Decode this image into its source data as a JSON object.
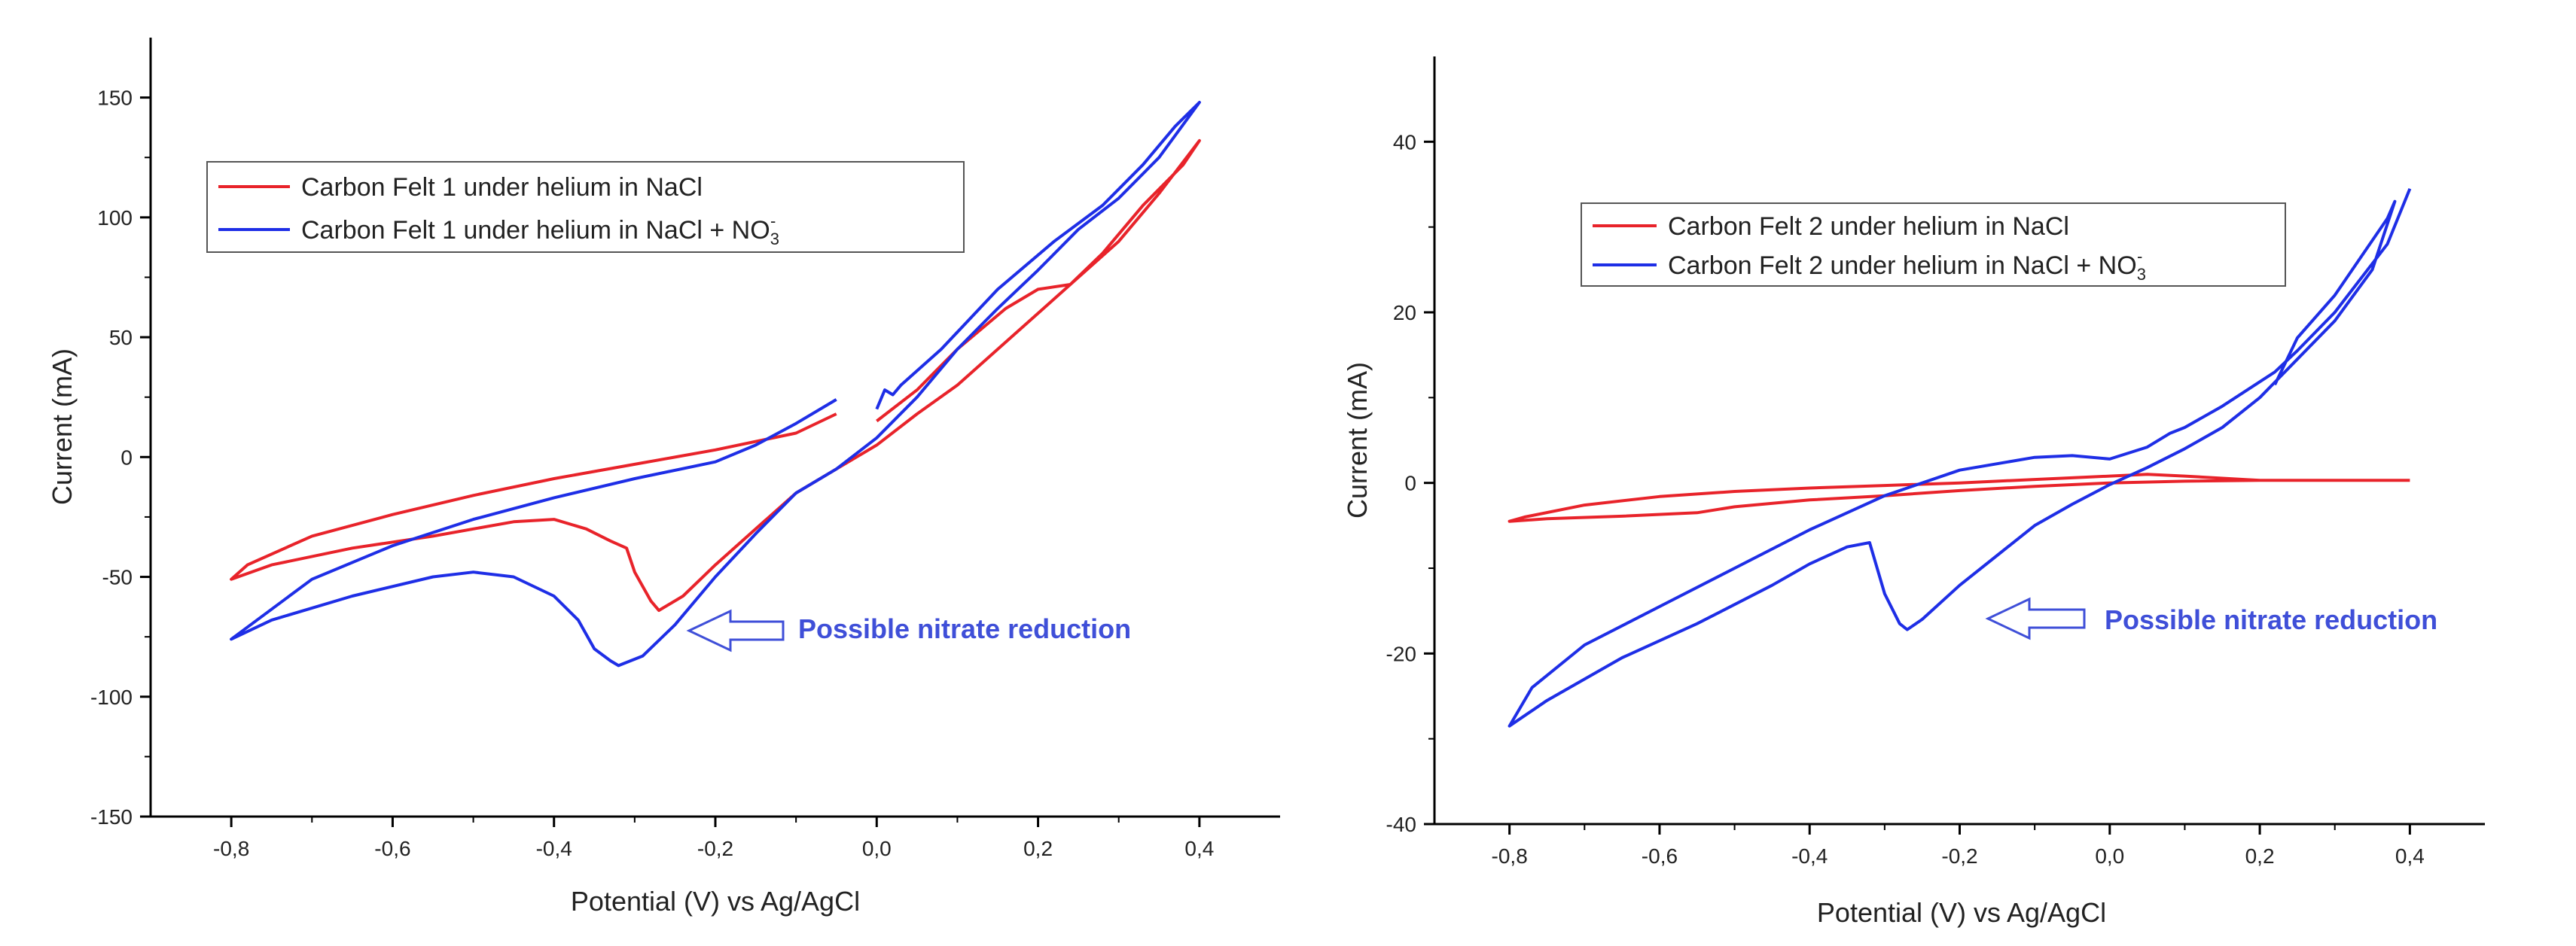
{
  "chart_data": [
    {
      "type": "line",
      "xlabel": "Potential (V) vs Ag/AgCl",
      "ylabel": "Current (mA)",
      "xlim": [
        -0.9,
        0.5
      ],
      "ylim": [
        -150,
        175
      ],
      "xticks": [
        -0.8,
        -0.6,
        -0.4,
        -0.2,
        0.0,
        0.2,
        0.4
      ],
      "xtick_labels": [
        "-0,8",
        "-0,6",
        "-0,4",
        "-0,2",
        "0,0",
        "0,2",
        "0,4"
      ],
      "yticks": [
        -150,
        -100,
        -50,
        0,
        50,
        100,
        150
      ],
      "ytick_labels": [
        "-150",
        "-100",
        "-50",
        "0",
        "50",
        "100",
        "150"
      ],
      "legend": [
        {
          "label": "Carbon Felt 1 under helium in NaCl",
          "color": "#e8232a"
        },
        {
          "label_main": "Carbon Felt 1 under helium in NaCl + NO",
          "label_sub": "3",
          "label_sup": "-",
          "color": "#1e2ee6"
        }
      ],
      "annotation": "Possible nitrate reduction",
      "series": [
        {
          "name": "Carbon Felt 1 under helium in NaCl",
          "color": "#e8232a",
          "points": [
            [
              -0.05,
              18
            ],
            [
              -0.1,
              10
            ],
            [
              -0.2,
              3
            ],
            [
              -0.3,
              -3
            ],
            [
              -0.4,
              -9
            ],
            [
              -0.5,
              -16
            ],
            [
              -0.6,
              -24
            ],
            [
              -0.7,
              -33
            ],
            [
              -0.78,
              -45
            ],
            [
              -0.8,
              -51
            ],
            [
              -0.75,
              -45
            ],
            [
              -0.65,
              -38
            ],
            [
              -0.55,
              -33
            ],
            [
              -0.45,
              -27
            ],
            [
              -0.4,
              -26
            ],
            [
              -0.36,
              -30
            ],
            [
              -0.33,
              -35
            ],
            [
              -0.31,
              -38
            ],
            [
              -0.3,
              -48
            ],
            [
              -0.28,
              -60
            ],
            [
              -0.27,
              -64
            ],
            [
              -0.24,
              -58
            ],
            [
              -0.2,
              -45
            ],
            [
              -0.15,
              -30
            ],
            [
              -0.1,
              -15
            ],
            [
              -0.05,
              -5
            ],
            [
              0.0,
              5
            ],
            [
              0.05,
              18
            ],
            [
              0.1,
              30
            ],
            [
              0.15,
              45
            ],
            [
              0.2,
              60
            ],
            [
              0.25,
              75
            ],
            [
              0.3,
              90
            ],
            [
              0.35,
              110
            ],
            [
              0.4,
              132
            ],
            [
              0.38,
              122
            ],
            [
              0.33,
              105
            ],
            [
              0.28,
              85
            ],
            [
              0.24,
              72
            ],
            [
              0.2,
              70
            ],
            [
              0.16,
              62
            ],
            [
              0.1,
              45
            ],
            [
              0.05,
              28
            ],
            [
              0.0,
              15
            ]
          ]
        },
        {
          "name": "Carbon Felt 1 under helium in NaCl + NO3-",
          "color": "#1e2ee6",
          "points": [
            [
              -0.05,
              24
            ],
            [
              -0.1,
              14
            ],
            [
              -0.15,
              5
            ],
            [
              -0.2,
              -2
            ],
            [
              -0.3,
              -9
            ],
            [
              -0.4,
              -17
            ],
            [
              -0.5,
              -26
            ],
            [
              -0.6,
              -37
            ],
            [
              -0.7,
              -51
            ],
            [
              -0.8,
              -76
            ],
            [
              -0.75,
              -68
            ],
            [
              -0.65,
              -58
            ],
            [
              -0.55,
              -50
            ],
            [
              -0.5,
              -48
            ],
            [
              -0.45,
              -50
            ],
            [
              -0.4,
              -58
            ],
            [
              -0.37,
              -68
            ],
            [
              -0.35,
              -80
            ],
            [
              -0.33,
              -85
            ],
            [
              -0.32,
              -87
            ],
            [
              -0.29,
              -83
            ],
            [
              -0.25,
              -70
            ],
            [
              -0.2,
              -50
            ],
            [
              -0.15,
              -32
            ],
            [
              -0.1,
              -15
            ],
            [
              -0.05,
              -5
            ],
            [
              0.0,
              8
            ],
            [
              0.05,
              25
            ],
            [
              0.1,
              45
            ],
            [
              0.15,
              62
            ],
            [
              0.2,
              78
            ],
            [
              0.25,
              95
            ],
            [
              0.3,
              108
            ],
            [
              0.35,
              125
            ],
            [
              0.4,
              148
            ],
            [
              0.37,
              138
            ],
            [
              0.33,
              122
            ],
            [
              0.28,
              105
            ],
            [
              0.22,
              90
            ],
            [
              0.15,
              70
            ],
            [
              0.08,
              45
            ],
            [
              0.03,
              30
            ],
            [
              0.02,
              26
            ],
            [
              0.01,
              28
            ],
            [
              0.0,
              20
            ]
          ]
        }
      ]
    },
    {
      "type": "line",
      "xlabel": "Potential (V) vs Ag/AgCl",
      "ylabel": "Current (mA)",
      "xlim": [
        -0.9,
        0.5
      ],
      "ylim": [
        -40,
        50
      ],
      "xticks": [
        -0.8,
        -0.6,
        -0.4,
        -0.2,
        0.0,
        0.2,
        0.4
      ],
      "xtick_labels": [
        "-0,8",
        "-0,6",
        "-0,4",
        "-0,2",
        "0,0",
        "0,2",
        "0,4"
      ],
      "yticks": [
        -40,
        -20,
        0,
        20,
        40
      ],
      "ytick_labels": [
        "-40",
        "-20",
        "0",
        "20",
        "40"
      ],
      "legend": [
        {
          "label": "Carbon Felt 2 under helium in NaCl",
          "color": "#e8232a"
        },
        {
          "label_main": "Carbon Felt 2 under helium in NaCl + NO",
          "label_sub": "3",
          "label_sup": "-",
          "color": "#1e2ee6"
        }
      ],
      "annotation": "Possible nitrate reduction",
      "series": [
        {
          "name": "Carbon Felt 2 under helium in NaCl",
          "color": "#e8232a",
          "points": [
            [
              0.4,
              0.3
            ],
            [
              0.3,
              0.3
            ],
            [
              0.2,
              0.3
            ],
            [
              0.1,
              0.8
            ],
            [
              0.05,
              1.0
            ],
            [
              0.0,
              0.8
            ],
            [
              -0.1,
              0.4
            ],
            [
              -0.2,
              0.0
            ],
            [
              -0.3,
              -0.3
            ],
            [
              -0.4,
              -0.6
            ],
            [
              -0.5,
              -1.0
            ],
            [
              -0.6,
              -1.6
            ],
            [
              -0.7,
              -2.6
            ],
            [
              -0.78,
              -4.0
            ],
            [
              -0.8,
              -4.5
            ],
            [
              -0.75,
              -4.2
            ],
            [
              -0.65,
              -3.9
            ],
            [
              -0.55,
              -3.5
            ],
            [
              -0.5,
              -2.8
            ],
            [
              -0.4,
              -2.0
            ],
            [
              -0.3,
              -1.5
            ],
            [
              -0.2,
              -0.9
            ],
            [
              -0.1,
              -0.4
            ],
            [
              0.0,
              0.0
            ],
            [
              0.1,
              0.2
            ],
            [
              0.2,
              0.3
            ],
            [
              0.3,
              0.3
            ],
            [
              0.4,
              0.3
            ]
          ]
        },
        {
          "name": "Carbon Felt 2 under helium in NaCl + NO3-",
          "color": "#1e2ee6",
          "points": [
            [
              0.4,
              34.5
            ],
            [
              0.37,
              28
            ],
            [
              0.3,
              20
            ],
            [
              0.25,
              15.5
            ],
            [
              0.22,
              13
            ],
            [
              0.15,
              9
            ],
            [
              0.1,
              6.5
            ],
            [
              0.08,
              5.8
            ],
            [
              0.05,
              4.2
            ],
            [
              0.0,
              2.8
            ],
            [
              -0.05,
              3.2
            ],
            [
              -0.1,
              3.0
            ],
            [
              -0.2,
              1.5
            ],
            [
              -0.3,
              -1.5
            ],
            [
              -0.4,
              -5.5
            ],
            [
              -0.5,
              -10
            ],
            [
              -0.6,
              -14.5
            ],
            [
              -0.7,
              -19
            ],
            [
              -0.77,
              -24
            ],
            [
              -0.8,
              -28.5
            ],
            [
              -0.75,
              -25.5
            ],
            [
              -0.65,
              -20.5
            ],
            [
              -0.55,
              -16.5
            ],
            [
              -0.45,
              -12
            ],
            [
              -0.4,
              -9.5
            ],
            [
              -0.35,
              -7.5
            ],
            [
              -0.32,
              -7.0
            ],
            [
              -0.3,
              -13
            ],
            [
              -0.28,
              -16.5
            ],
            [
              -0.27,
              -17.2
            ],
            [
              -0.25,
              -16
            ],
            [
              -0.2,
              -12
            ],
            [
              -0.15,
              -8.5
            ],
            [
              -0.1,
              -5
            ],
            [
              -0.05,
              -2.5
            ],
            [
              0.0,
              -0.2
            ],
            [
              0.05,
              1.8
            ],
            [
              0.1,
              4
            ],
            [
              0.15,
              6.5
            ],
            [
              0.2,
              10
            ],
            [
              0.25,
              14.5
            ],
            [
              0.3,
              19
            ],
            [
              0.35,
              25
            ],
            [
              0.38,
              33
            ],
            [
              0.37,
              31
            ],
            [
              0.3,
              22
            ],
            [
              0.25,
              17
            ],
            [
              0.22,
              11.5
            ]
          ]
        }
      ]
    }
  ]
}
